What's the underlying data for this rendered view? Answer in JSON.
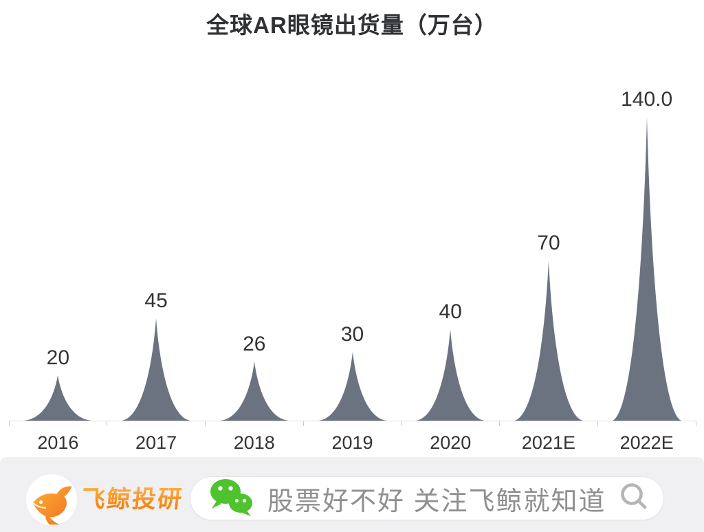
{
  "title": "全球AR眼镜出货量（万台）",
  "chart_data": {
    "type": "bar",
    "subtype": "pictorial-spike",
    "title": "全球AR眼镜出货量（万台）",
    "categories": [
      "2016",
      "2017",
      "2018",
      "2019",
      "2020",
      "2021E",
      "2022E"
    ],
    "values": [
      20,
      45,
      26,
      30,
      40,
      70,
      140
    ],
    "value_labels": [
      "20",
      "45",
      "26",
      "30",
      "40",
      "70",
      "140.0"
    ],
    "xlabel": "",
    "ylabel": "",
    "ylim": [
      0,
      140
    ],
    "grid": "off",
    "legend": "none",
    "bar_color": "#6c7380",
    "label_color": "#333333",
    "axis_color": "#dddddd",
    "tick_color": "#cccccc"
  },
  "footer": {
    "brand": "飞鲸投研",
    "brand_color": "#f8930d",
    "search_text": "股票好不好 关注飞鲸就知道",
    "search_text_color": "#8f8f8f",
    "background_color": "#f0f0f2",
    "icons": {
      "logo": "whale-logo-icon",
      "wechat": "wechat-icon",
      "magnifier": "search-icon"
    },
    "wechat_green": "#4ec32d",
    "magnifier_gray": "#b5b5b5"
  }
}
